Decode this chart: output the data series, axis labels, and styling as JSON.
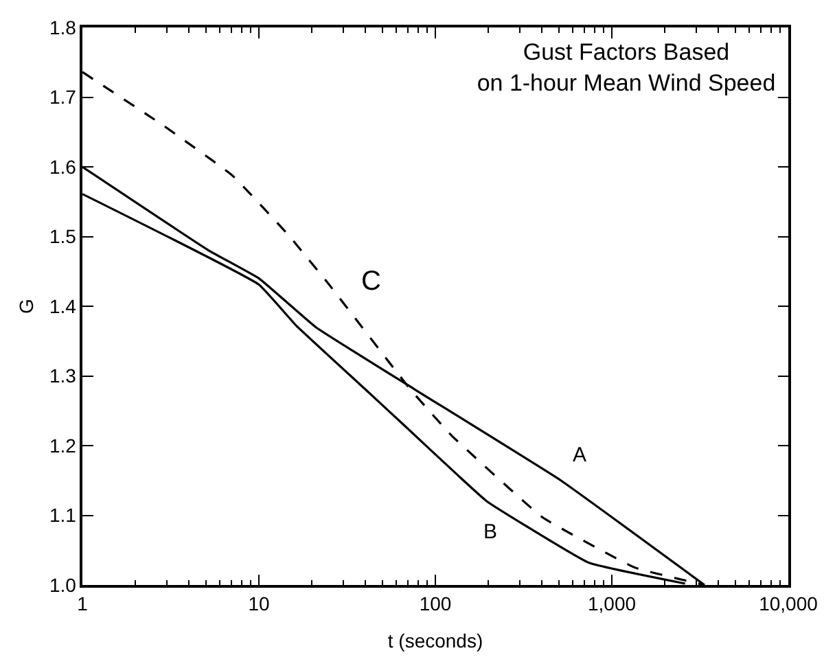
{
  "chart_data": {
    "type": "line",
    "title": "Gust Factors Based\non 1-hour Mean Wind Speed",
    "xlabel": "t (seconds)",
    "ylabel": "G",
    "log": "x",
    "xlim": [
      1,
      10000
    ],
    "xticks": [
      1,
      10,
      100,
      {
        "value": 1000,
        "label": "1,000"
      },
      {
        "value": 10000,
        "label": "10,000"
      }
    ],
    "ylim": [
      1.0,
      1.8
    ],
    "yticks": [
      {
        "value": 1.0,
        "label": "1.0"
      },
      1.1,
      1.2,
      1.3,
      1.4,
      1.5,
      1.6,
      1.7,
      1.8
    ],
    "legend": false,
    "marker": "none",
    "series": [
      {
        "name": "A",
        "color": "#000000",
        "line_style": "solid",
        "x": [
          1,
          5.2,
          10,
          21,
          76,
          514,
          3350
        ],
        "values": [
          1.6,
          1.48,
          1.44,
          1.37,
          1.281,
          1.15,
          1.0
        ]
      },
      {
        "name": "B",
        "color": "#000000",
        "line_style": "solid",
        "x": [
          1,
          10,
          16.3,
          40,
          66,
          136,
          196,
          740,
          2600
        ],
        "values": [
          1.561,
          1.431,
          1.372,
          1.281,
          1.23,
          1.156,
          1.12,
          1.032,
          1.002
        ]
      },
      {
        "name": "C",
        "color": "#000000",
        "line_style": "dashed",
        "x": [
          1,
          2.85,
          7.05,
          14.6,
          25,
          72,
          123,
          405,
          1350,
          3350
        ],
        "values": [
          1.736,
          1.66,
          1.588,
          1.503,
          1.431,
          1.281,
          1.215,
          1.097,
          1.025,
          1.0
        ]
      }
    ]
  }
}
